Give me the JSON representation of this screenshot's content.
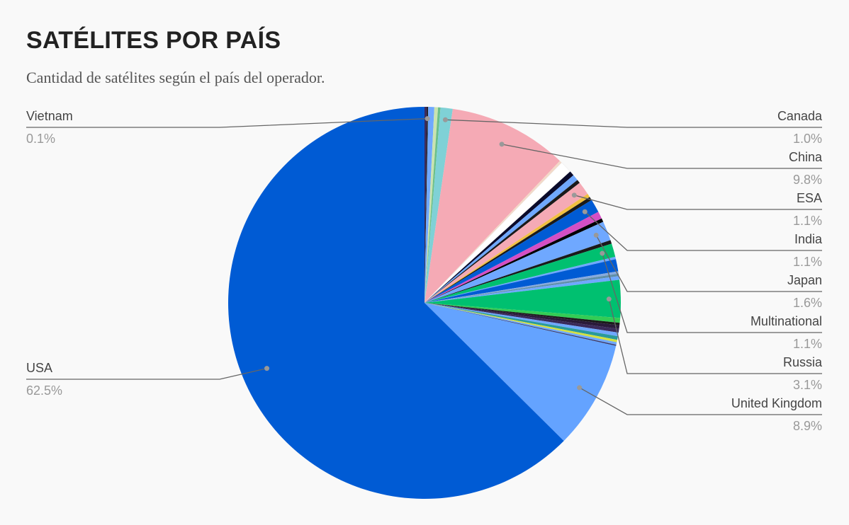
{
  "header": {
    "title": "SATÉLITES POR PAÍS",
    "subtitle": "Cantidad de satélites según el país del operador."
  },
  "chart_data": {
    "type": "pie",
    "title": "SATÉLITES POR PAÍS",
    "subtitle": "Cantidad de satélites según el país del operador.",
    "start": "top",
    "direction": "clockwise",
    "slices": [
      {
        "name": "",
        "value": 0.2,
        "color": "#3c2a5a"
      },
      {
        "name": "Vietnam",
        "value": 0.1,
        "color": "#1a1a1a",
        "label": "0.1%"
      },
      {
        "name": "",
        "value": 0.5,
        "color": "#6fa8ff"
      },
      {
        "name": "",
        "value": 0.3,
        "color": "#c9e3b0"
      },
      {
        "name": "",
        "value": 0.2,
        "color": "#6bbf8a"
      },
      {
        "name": "Canada",
        "value": 1.0,
        "color": "#7fd1d6",
        "label": "1.0%"
      },
      {
        "name": "China",
        "value": 9.8,
        "color": "#f5aab5",
        "label": "9.8%"
      },
      {
        "name": "",
        "value": 0.2,
        "color": "#f3d9c8"
      },
      {
        "name": "",
        "value": 1.0,
        "color": "#ffffff"
      },
      {
        "name": "",
        "value": 0.4,
        "color": "#0a0a2a"
      },
      {
        "name": "",
        "value": 0.5,
        "color": "#6fa8ff"
      },
      {
        "name": "",
        "value": 0.3,
        "color": "#1a1a1a"
      },
      {
        "name": "ESA",
        "value": 1.1,
        "color": "#f5aab5",
        "label": "1.1%"
      },
      {
        "name": "",
        "value": 0.3,
        "color": "#f0c040"
      },
      {
        "name": "",
        "value": 0.3,
        "color": "#1a1a1a"
      },
      {
        "name": "India",
        "value": 1.1,
        "color": "#005bd4",
        "label": "1.1%"
      },
      {
        "name": "",
        "value": 0.6,
        "color": "#d44fc4"
      },
      {
        "name": "",
        "value": 0.3,
        "color": "#000000"
      },
      {
        "name": "Japan",
        "value": 1.6,
        "color": "#6fa8ff",
        "label": "1.6%"
      },
      {
        "name": "",
        "value": 0.3,
        "color": "#1a1a1a"
      },
      {
        "name": "Multinational",
        "value": 1.1,
        "color": "#00c070",
        "label": "1.1%"
      },
      {
        "name": "",
        "value": 0.2,
        "color": "#6fa8ff"
      },
      {
        "name": "",
        "value": 1.0,
        "color": "#005bd4"
      },
      {
        "name": "",
        "value": 0.2,
        "color": "#88aadd"
      },
      {
        "name": "",
        "value": 0.2,
        "color": "#5f8fa8"
      },
      {
        "name": "",
        "value": 0.3,
        "color": "#6fa8ff"
      },
      {
        "name": "Russia",
        "value": 3.1,
        "color": "#00c070",
        "label": "3.1%"
      },
      {
        "name": "",
        "value": 0.4,
        "color": "#33cc55"
      },
      {
        "name": "",
        "value": 0.2,
        "color": "#1a1a1a"
      },
      {
        "name": "",
        "value": 0.3,
        "color": "#2a1a3a"
      },
      {
        "name": "",
        "value": 0.3,
        "color": "#3a2a5a"
      },
      {
        "name": "",
        "value": 0.3,
        "color": "#6fa8ff"
      },
      {
        "name": "",
        "value": 0.3,
        "color": "#2a9a9a"
      },
      {
        "name": "",
        "value": 0.2,
        "color": "#d4e040"
      },
      {
        "name": "",
        "value": 0.2,
        "color": "#6fa8ff"
      },
      {
        "name": "",
        "value": 0.1,
        "color": "#3a3a6a"
      },
      {
        "name": "United Kingdom",
        "value": 8.9,
        "color": "#64a3ff",
        "label": "8.9%"
      },
      {
        "name": "USA",
        "value": 62.5,
        "color": "#005bd4",
        "label": "62.5%"
      }
    ]
  }
}
